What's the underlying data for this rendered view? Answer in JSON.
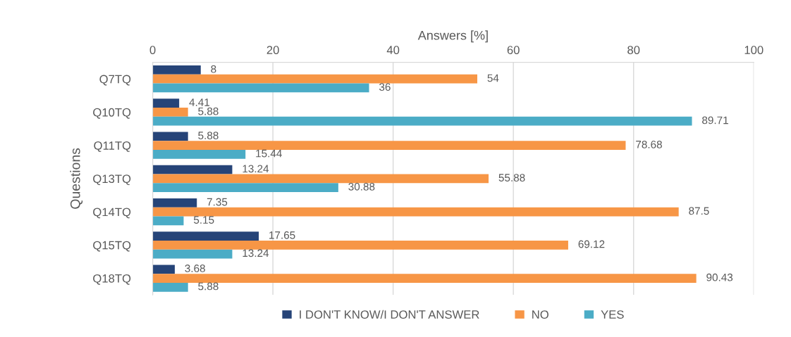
{
  "chart_data": {
    "type": "bar",
    "orientation": "horizontal",
    "xlabel": "Answers [%]",
    "ylabel": "Questions",
    "categories": [
      "Q7TQ",
      "Q10TQ",
      "Q11TQ",
      "Q13TQ",
      "Q14TQ",
      "Q15TQ",
      "Q18TQ"
    ],
    "series": [
      {
        "name": "I DON'T KNOW/I DON'T ANSWER",
        "color": "#264478",
        "values": [
          8,
          4.41,
          5.88,
          13.24,
          7.35,
          17.65,
          3.68
        ]
      },
      {
        "name": "NO",
        "color": "#f79646",
        "values": [
          54,
          5.88,
          78.68,
          55.88,
          87.5,
          69.12,
          90.43
        ]
      },
      {
        "name": "YES",
        "color": "#4bacc6",
        "values": [
          36,
          89.71,
          15.44,
          30.88,
          5.15,
          13.24,
          5.88
        ]
      }
    ],
    "xlim": [
      0,
      100
    ],
    "xticks": [
      0,
      20,
      40,
      60,
      80,
      100
    ],
    "grid": "x",
    "legend": "bottom",
    "data_labels": true
  }
}
